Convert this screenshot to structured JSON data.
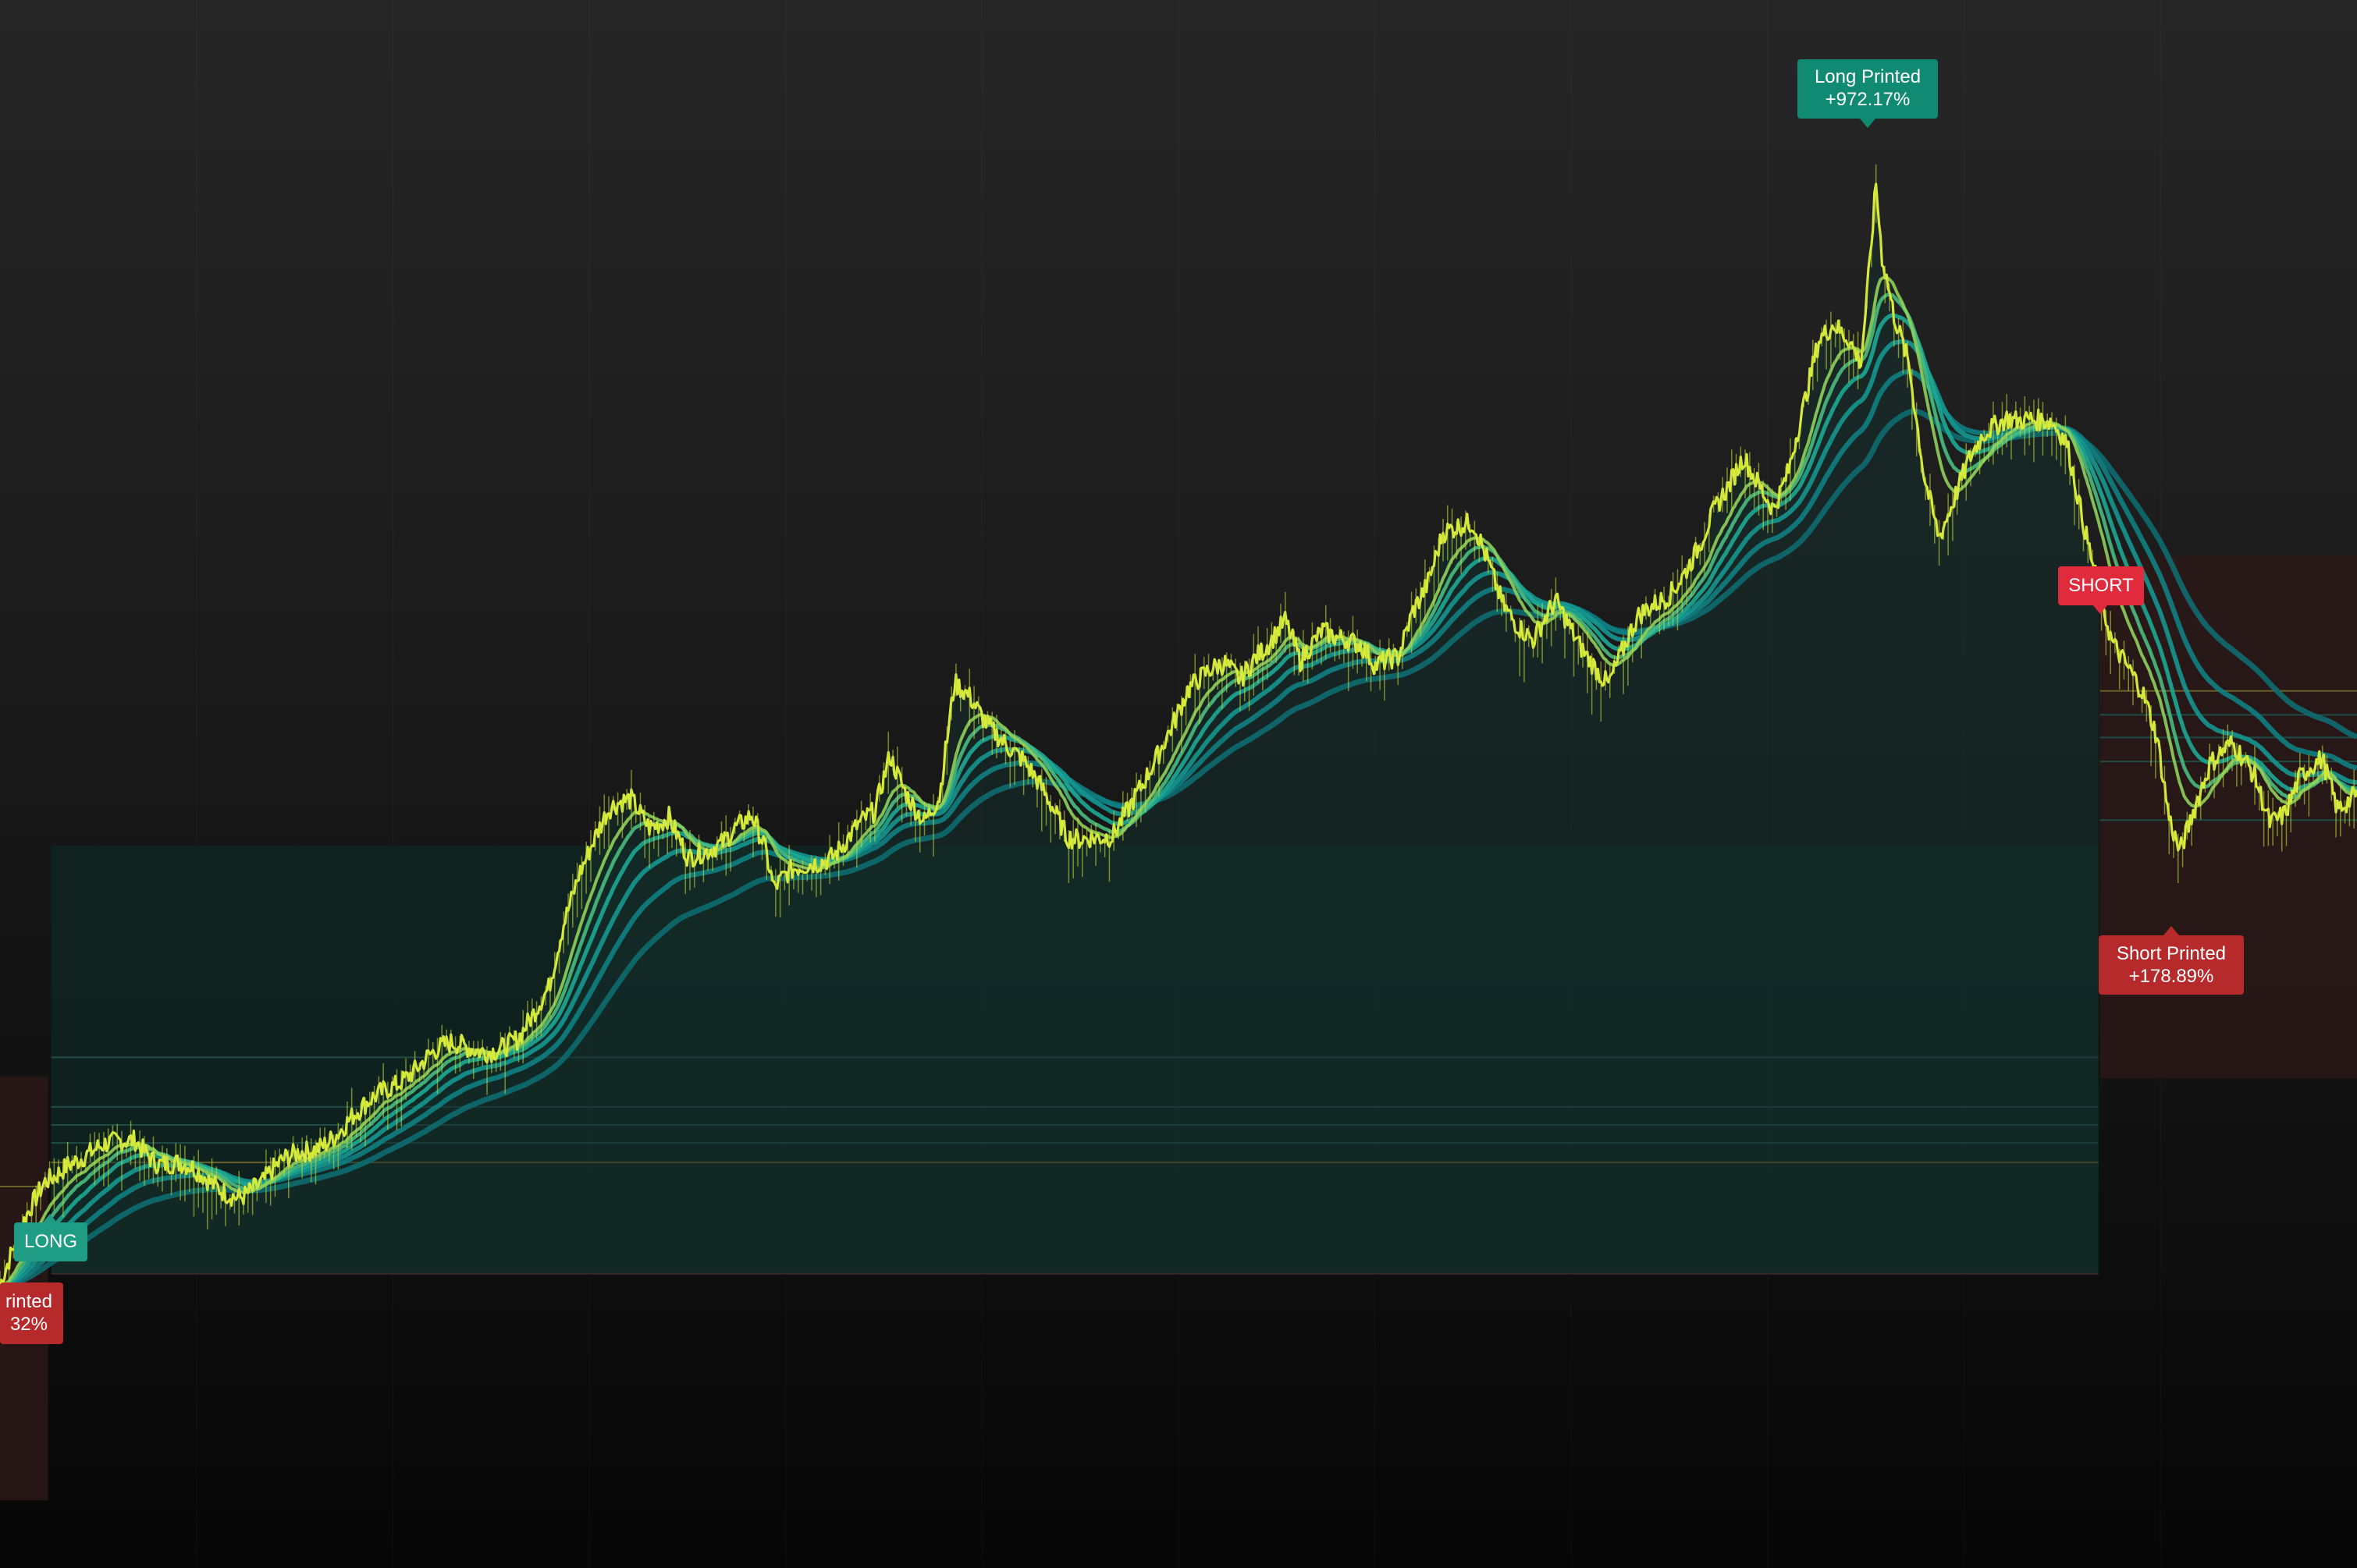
{
  "chart_data": {
    "type": "line",
    "title": "",
    "xlabel": "",
    "ylabel": "",
    "grid": false,
    "legend": "none",
    "ylim": [
      0,
      1044
    ],
    "xlim": [
      0,
      1568
    ],
    "series": [
      {
        "values": [
          [
            0,
            188
          ],
          [
            18,
            232
          ],
          [
            30,
            258
          ],
          [
            45,
            272
          ],
          [
            60,
            275
          ],
          [
            75,
            280
          ],
          [
            90,
            287
          ],
          [
            105,
            272
          ],
          [
            120,
            267
          ],
          [
            140,
            256
          ],
          [
            160,
            250
          ],
          [
            175,
            255
          ],
          [
            190,
            270
          ],
          [
            200,
            278
          ],
          [
            215,
            285
          ],
          [
            225,
            290
          ],
          [
            240,
            302
          ],
          [
            255,
            318
          ],
          [
            270,
            330
          ],
          [
            285,
            340
          ],
          [
            300,
            346
          ],
          [
            315,
            347
          ],
          [
            330,
            348
          ],
          [
            345,
            350
          ],
          [
            355,
            365
          ],
          [
            365,
            385
          ],
          [
            375,
            432
          ],
          [
            385,
            465
          ],
          [
            395,
            485
          ],
          [
            405,
            502
          ],
          [
            420,
            510
          ],
          [
            432,
            496
          ],
          [
            445,
            503
          ],
          [
            458,
            470
          ],
          [
            470,
            473
          ],
          [
            480,
            482
          ],
          [
            490,
            497
          ],
          [
            500,
            505
          ],
          [
            508,
            483
          ],
          [
            515,
            450
          ],
          [
            525,
            460
          ],
          [
            540,
            470
          ],
          [
            555,
            478
          ],
          [
            570,
            492
          ],
          [
            582,
            500
          ],
          [
            592,
            540
          ],
          [
            602,
            520
          ],
          [
            615,
            500
          ],
          [
            625,
            512
          ],
          [
            635,
            585
          ],
          [
            645,
            578
          ],
          [
            655,
            566
          ],
          [
            665,
            557
          ],
          [
            680,
            538
          ],
          [
            695,
            512
          ],
          [
            710,
            488
          ],
          [
            725,
            490
          ],
          [
            740,
            485
          ],
          [
            750,
            500
          ],
          [
            760,
            520
          ],
          [
            775,
            555
          ],
          [
            790,
            585
          ],
          [
            805,
            594
          ],
          [
            815,
            600
          ],
          [
            825,
            594
          ],
          [
            835,
            610
          ],
          [
            845,
            618
          ],
          [
            855,
            628
          ],
          [
            865,
            600
          ],
          [
            880,
            626
          ],
          [
            895,
            622
          ],
          [
            905,
            615
          ],
          [
            915,
            597
          ],
          [
            930,
            605
          ],
          [
            940,
            640
          ],
          [
            950,
            660
          ],
          [
            960,
            690
          ],
          [
            970,
            690
          ],
          [
            980,
            692
          ],
          [
            990,
            670
          ],
          [
            1000,
            645
          ],
          [
            1010,
            630
          ],
          [
            1020,
            617
          ],
          [
            1035,
            640
          ],
          [
            1048,
            620
          ],
          [
            1060,
            605
          ],
          [
            1070,
            590
          ],
          [
            1080,
            610
          ],
          [
            1090,
            630
          ],
          [
            1100,
            640
          ],
          [
            1110,
            650
          ],
          [
            1120,
            665
          ],
          [
            1130,
            680
          ],
          [
            1140,
            700
          ],
          [
            1150,
            717
          ],
          [
            1160,
            740
          ],
          [
            1170,
            725
          ],
          [
            1180,
            708
          ],
          [
            1190,
            730
          ],
          [
            1200,
            770
          ],
          [
            1210,
            815
          ],
          [
            1220,
            830
          ],
          [
            1230,
            822
          ],
          [
            1238,
            805
          ],
          [
            1244,
            870
          ],
          [
            1248,
            920
          ],
          [
            1252,
            870
          ],
          [
            1260,
            830
          ],
          [
            1270,
            800
          ],
          [
            1280,
            730
          ],
          [
            1290,
            690
          ],
          [
            1300,
            712
          ],
          [
            1310,
            735
          ],
          [
            1320,
            752
          ],
          [
            1335,
            768
          ],
          [
            1350,
            768
          ],
          [
            1365,
            760
          ],
          [
            1375,
            745
          ],
          [
            1385,
            700
          ],
          [
            1395,
            660
          ],
          [
            1405,
            620
          ],
          [
            1415,
            600
          ],
          [
            1425,
            580
          ],
          [
            1435,
            550
          ],
          [
            1443,
            500
          ],
          [
            1450,
            480
          ],
          [
            1460,
            510
          ],
          [
            1470,
            535
          ],
          [
            1485,
            545
          ],
          [
            1500,
            528
          ],
          [
            1510,
            500
          ],
          [
            1520,
            505
          ],
          [
            1530,
            525
          ],
          [
            1545,
            535
          ],
          [
            1555,
            505
          ],
          [
            1568,
            520
          ]
        ]
      }
    ],
    "annotations": [
      {
        "text": "Long Printed +972.17%"
      },
      {
        "text": "Short Printed +178.89%"
      },
      {
        "text": "SHORT"
      },
      {
        "text": "LONG"
      }
    ]
  },
  "labels": {
    "long_printed": {
      "title": "Long Printed",
      "value": "+972.17%"
    },
    "short_printed": {
      "title": "Short Printed",
      "value": "+178.89%"
    },
    "short_printed_left": {
      "title": "rinted",
      "value": "32%"
    },
    "signal_short": "SHORT",
    "signal_long": "LONG"
  },
  "colors": {
    "long": "#108a73",
    "short": "#b62a2c",
    "short_signal": "#e12b3d",
    "ribbon_high": "#d9eb3a",
    "ribbon_low": "#0f7f82",
    "area_fill": "#14302b"
  }
}
